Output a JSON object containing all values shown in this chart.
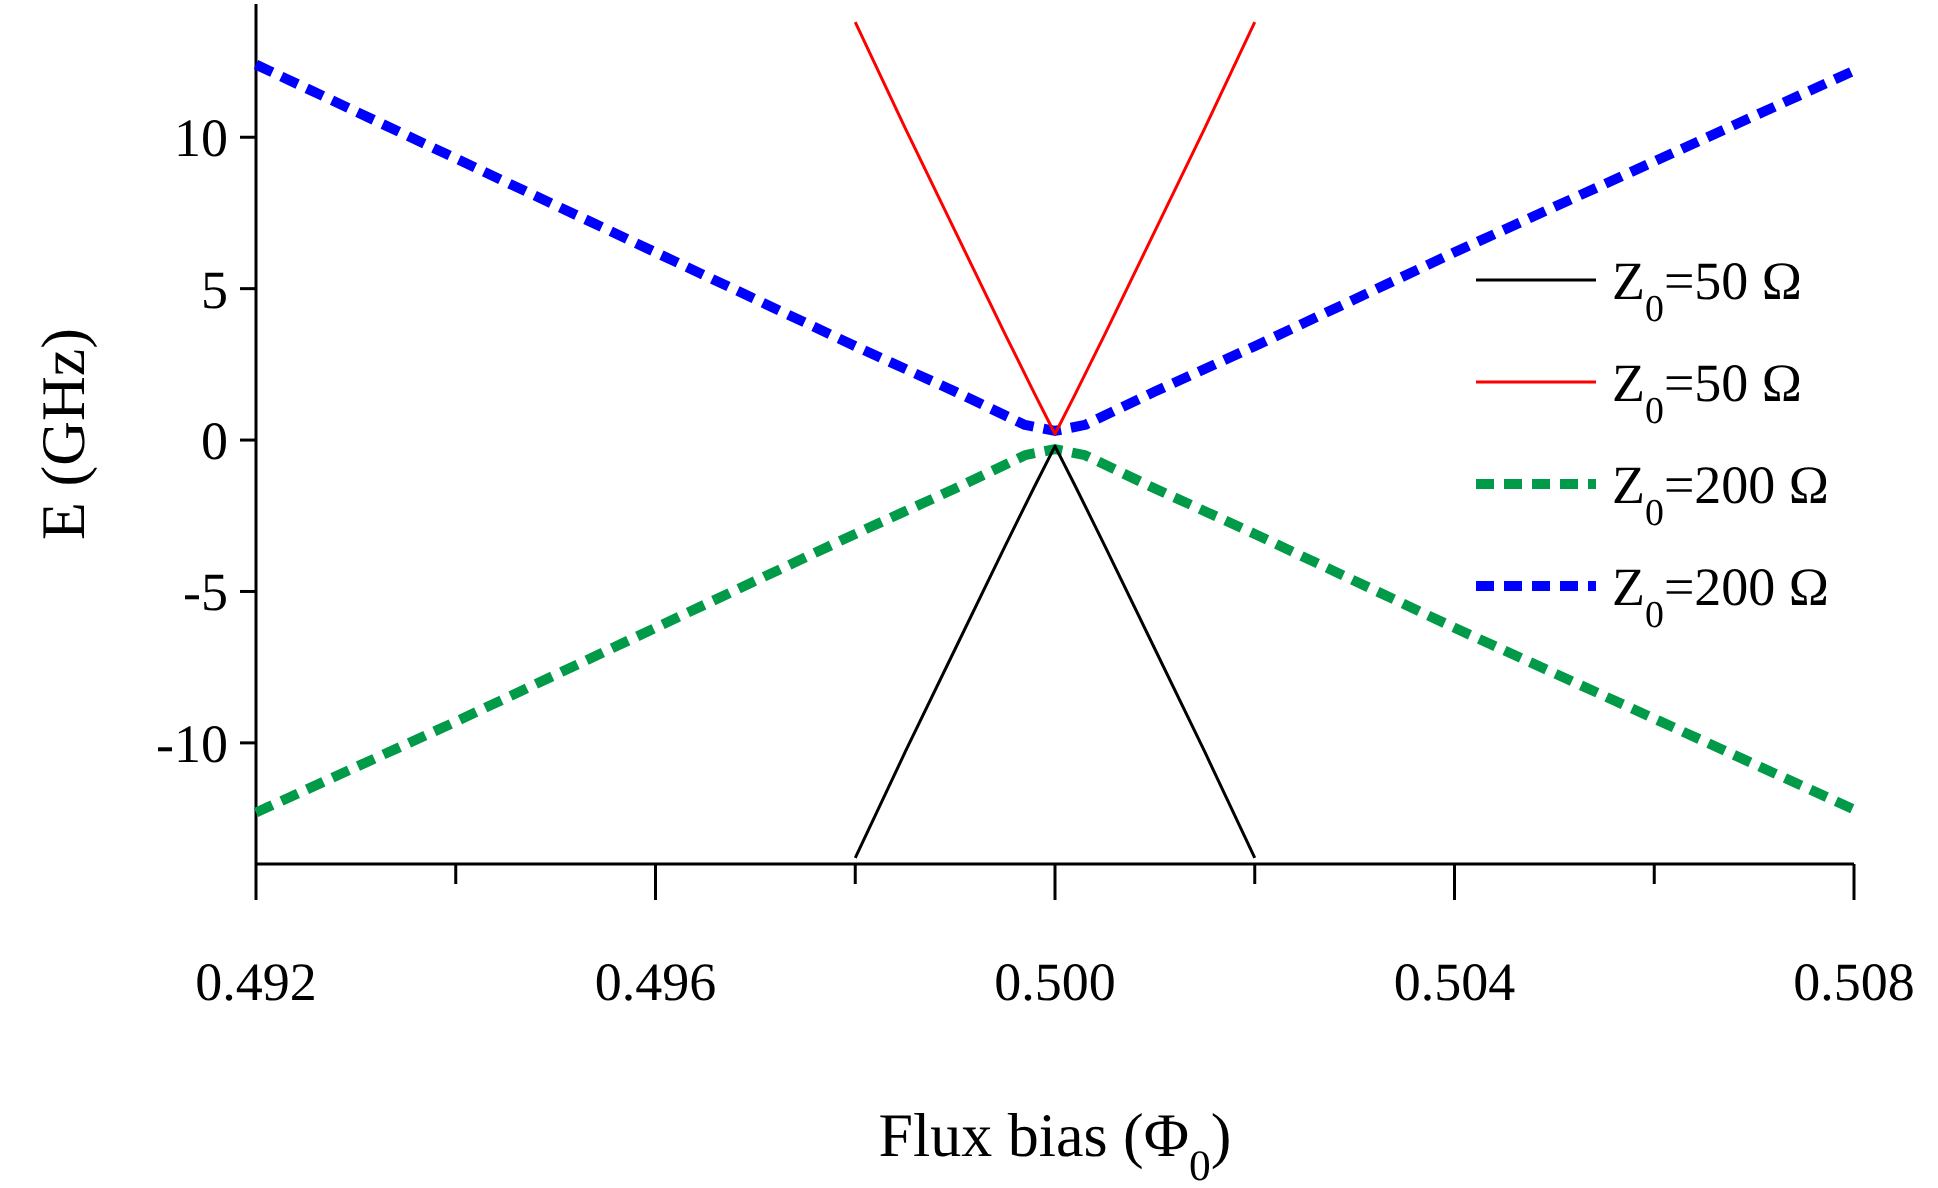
{
  "chart_data": {
    "type": "line",
    "xlabel": "Flux bias (Φ$_{0}$)",
    "ylabel": "E (GHz)",
    "xlim": [
      0.492,
      0.508
    ],
    "ylim": [
      -14,
      14.4
    ],
    "xticks": [
      {
        "value": 0.492,
        "label": "0.492"
      },
      {
        "value": 0.494,
        "label": null
      },
      {
        "value": 0.496,
        "label": "0.496"
      },
      {
        "value": 0.498,
        "label": null
      },
      {
        "value": 0.5,
        "label": "0.500"
      },
      {
        "value": 0.502,
        "label": null
      },
      {
        "value": 0.504,
        "label": "0.504"
      },
      {
        "value": 0.506,
        "label": null
      },
      {
        "value": 0.508,
        "label": "0.508"
      }
    ],
    "yticks": [
      {
        "value": -10,
        "label": "-10"
      },
      {
        "value": -5,
        "label": "-5"
      },
      0,
      5,
      10
    ],
    "grid": false,
    "legend": "right",
    "marker": "none",
    "series": [
      {
        "name": "Z$_{0}$=50 Ω",
        "color": "#000000",
        "line_style": "solid",
        "x": [
          0.498,
          0.4985,
          0.499,
          0.4995,
          0.4998,
          0.5,
          0.5002,
          0.5005,
          0.501,
          0.5015,
          0.502
        ],
        "values": [
          -13.8,
          -10.3,
          -6.9,
          -3.5,
          -1.5,
          -0.2,
          -1.5,
          -3.5,
          -6.9,
          -10.3,
          -13.8
        ]
      },
      {
        "name": "Z$_{0}$=50 Ω",
        "color": "#ff0000",
        "line_style": "solid",
        "x": [
          0.498,
          0.4985,
          0.499,
          0.4995,
          0.4998,
          0.5,
          0.5002,
          0.5005,
          0.501,
          0.5015,
          0.502
        ],
        "values": [
          13.8,
          10.3,
          6.9,
          3.5,
          1.5,
          0.2,
          1.5,
          3.5,
          6.9,
          10.3,
          13.8
        ]
      },
      {
        "name": "Z$_{0}$=200 Ω",
        "color": "#009a48",
        "line_style": "dashed",
        "x": [
          0.492,
          0.494,
          0.496,
          0.498,
          0.499,
          0.4997,
          0.5,
          0.5003,
          0.501,
          0.502,
          0.504,
          0.506,
          0.508
        ],
        "values": [
          -12.3,
          -9.3,
          -6.2,
          -3.1,
          -1.6,
          -0.5,
          -0.3,
          -0.5,
          -1.6,
          -3.1,
          -6.2,
          -9.2,
          -12.2
        ]
      },
      {
        "name": "Z$_{0}$=200 Ω",
        "color": "#0000ff",
        "line_style": "dashed",
        "x": [
          0.492,
          0.494,
          0.496,
          0.498,
          0.499,
          0.4997,
          0.5,
          0.5003,
          0.501,
          0.502,
          0.504,
          0.506,
          0.508
        ],
        "values": [
          12.4,
          9.3,
          6.2,
          3.1,
          1.6,
          0.5,
          0.3,
          0.5,
          1.6,
          3.1,
          6.2,
          9.2,
          12.2
        ]
      }
    ]
  }
}
